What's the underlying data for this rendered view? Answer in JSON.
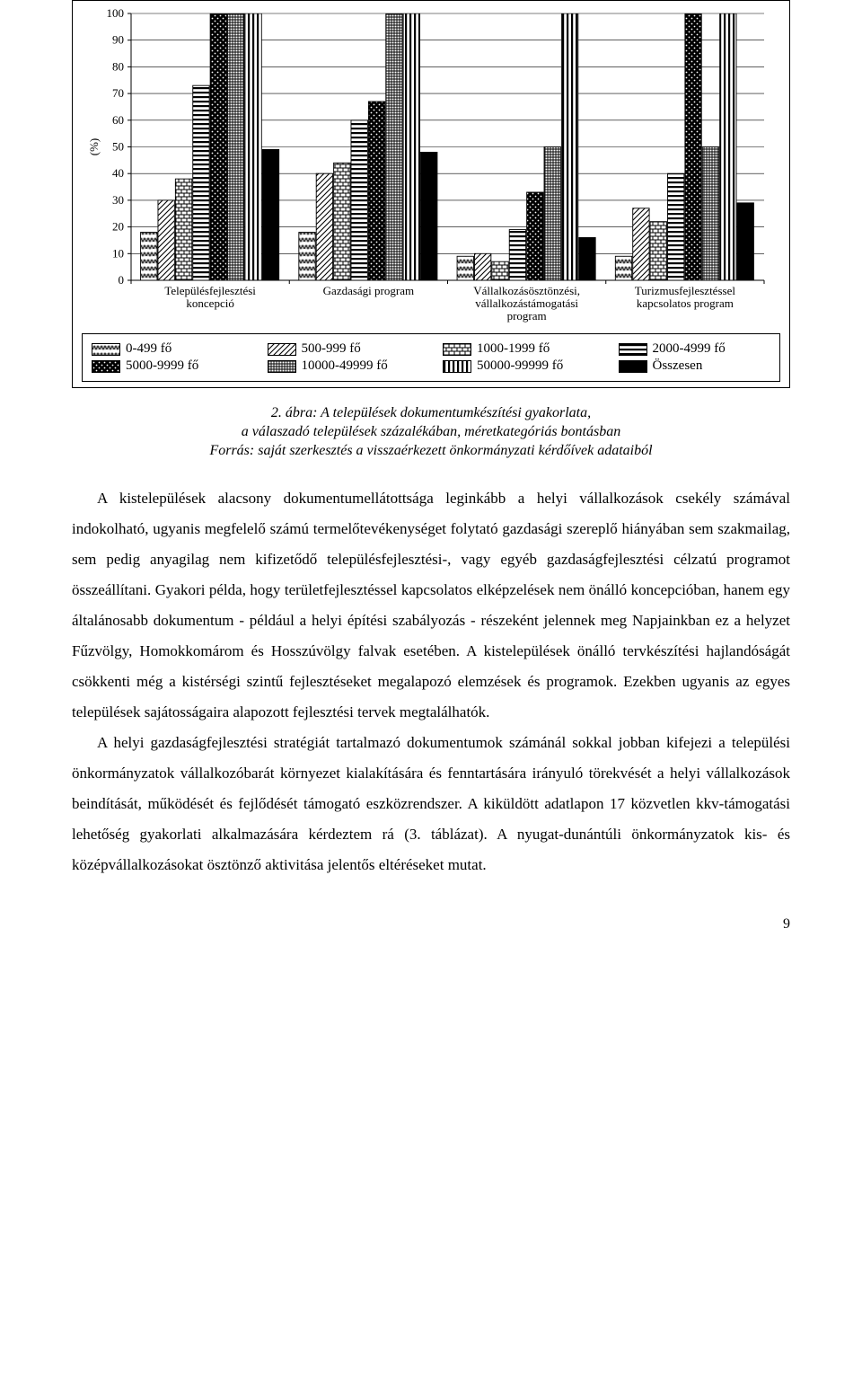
{
  "chart": {
    "type": "grouped-bar",
    "ylabel": "(%)",
    "ylim": [
      0,
      100
    ],
    "ytick_step": 10,
    "label_fontsize": 13,
    "tick_fontsize": 13,
    "background_color": "#ffffff",
    "grid_color": "#000000",
    "axis_color": "#000000",
    "bar_border_color": "#000000",
    "bar_width": 0.11,
    "group_gap": 0.12,
    "categories": [
      "Településfejlesztési koncepció",
      "Gazdasági program",
      "Vállalkozásösztönzési, vállalkozástámogatási program",
      "Turizmusfejlesztéssel kapcsolatos program"
    ],
    "series": [
      {
        "name": "0-499 fő",
        "pattern": "zigzag",
        "values": [
          18,
          18,
          9,
          9
        ]
      },
      {
        "name": "500-999 fő",
        "pattern": "diag",
        "values": [
          30,
          40,
          10,
          27
        ]
      },
      {
        "name": "1000-1999 fő",
        "pattern": "brick",
        "values": [
          38,
          44,
          7,
          22
        ]
      },
      {
        "name": "2000-4999 fő",
        "pattern": "hstripe",
        "values": [
          73,
          60,
          19,
          40
        ]
      },
      {
        "name": "5000-9999 fő",
        "pattern": "dots",
        "values": [
          100,
          67,
          33,
          100
        ]
      },
      {
        "name": "10000-49999 fő",
        "pattern": "grid",
        "values": [
          100,
          100,
          50,
          50
        ]
      },
      {
        "name": "50000-99999 fő",
        "pattern": "vstripe",
        "values": [
          100,
          100,
          100,
          100
        ]
      },
      {
        "name": "Összesen",
        "pattern": "solid",
        "values": [
          49,
          48,
          16,
          29
        ]
      }
    ],
    "clip_top_above": 100
  },
  "caption": {
    "line1_prefix": "2. ábra:",
    "line1_rest": " A települések dokumentumkészítési gyakorlata,",
    "line2": "a válaszadó települések százalékában, méretkategóriás bontásban",
    "line3": "Forrás: saját szerkesztés a visszaérkezett önkormányzati kérdőívek adataiból"
  },
  "paragraphs": [
    "A kistelepülések alacsony dokumentumellátottsága leginkább a helyi vállalkozások csekély számával indokolható, ugyanis megfelelő számú termelőtevékenységet folytató gazdasági szereplő hiányában sem szakmailag, sem pedig anyagilag nem kifizetődő településfejlesztési-, vagy egyéb gazdaságfejlesztési célzatú programot összeállítani. Gyakori példa, hogy területfejlesztéssel kapcsolatos elképzelések nem önálló koncepcióban, hanem egy általánosabb dokumentum - például a helyi építési szabályozás - részeként jelennek meg Napjainkban ez a helyzet Fűzvölgy, Homokkomárom és Hosszúvölgy falvak esetében. A kistelepülések önálló tervkészítési hajlandóságát csökkenti még a kistérségi szintű fejlesztéseket megalapozó elemzések és programok. Ezekben ugyanis az egyes települések sajátosságaira alapozott fejlesztési tervek megtalálhatók.",
    "A helyi gazdaságfejlesztési stratégiát tartalmazó dokumentumok számánál sokkal jobban kifejezi a települési önkormányzatok vállalkozóbarát környezet kialakítására és fenntartására irányuló törekvését a helyi vállalkozások beindítását, működését és fejlődését támogató eszközrendszer. A kiküldött adatlapon 17 közvetlen kkv-támogatási lehetőség gyakorlati alkalmazására kérdeztem rá (3. táblázat). A nyugat-dunántúli önkormányzatok kis- és középvállalkozásokat ösztönző aktivitása jelentős eltéréseket mutat."
  ],
  "page_number": "9"
}
